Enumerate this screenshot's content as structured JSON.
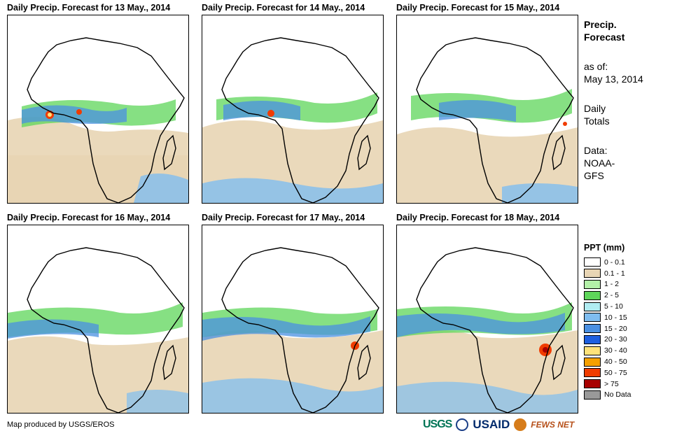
{
  "panels": [
    {
      "title": "Daily Precip. Forecast for 13 May., 2014"
    },
    {
      "title": "Daily Precip. Forecast for 14 May., 2014"
    },
    {
      "title": "Daily Precip. Forecast for 15 May., 2014"
    },
    {
      "title": "Daily Precip. Forecast for 16 May., 2014"
    },
    {
      "title": "Daily Precip. Forecast for 17 May., 2014"
    },
    {
      "title": "Daily Precip. Forecast for 18 May., 2014"
    }
  ],
  "sidebar": {
    "title_line1": "Precip.",
    "title_line2": "Forecast",
    "asof_label": "as of:",
    "asof_date": "May 13, 2014",
    "totals_line1": "Daily",
    "totals_line2": "Totals",
    "data_line1": "Data:",
    "data_line2": "NOAA-",
    "data_line3": "GFS"
  },
  "legend": {
    "title": "PPT (mm)",
    "items": [
      {
        "label": "0 - 0.1",
        "color": "#ffffff"
      },
      {
        "label": "0.1 - 1",
        "color": "#e8d5b4"
      },
      {
        "label": "1 - 2",
        "color": "#b3f0a8"
      },
      {
        "label": "2 - 5",
        "color": "#5ed65a"
      },
      {
        "label": "5 - 10",
        "color": "#b0ecf2"
      },
      {
        "label": "10 - 15",
        "color": "#7fbdf0"
      },
      {
        "label": "15 - 20",
        "color": "#4a90e2"
      },
      {
        "label": "20 - 30",
        "color": "#1e5fe0"
      },
      {
        "label": "30 - 40",
        "color": "#ffe27a"
      },
      {
        "label": "40 - 50",
        "color": "#f5a000"
      },
      {
        "label": "50 - 75",
        "color": "#f03c00"
      },
      {
        "label": "> 75",
        "color": "#a80000"
      },
      {
        "label": "No Data",
        "color": "#999999"
      }
    ]
  },
  "footer": {
    "text": "Map produced by USGS/EROS"
  },
  "logos": {
    "usgs": "USGS",
    "usaid": "USAID",
    "fews": "FEWS NET"
  }
}
